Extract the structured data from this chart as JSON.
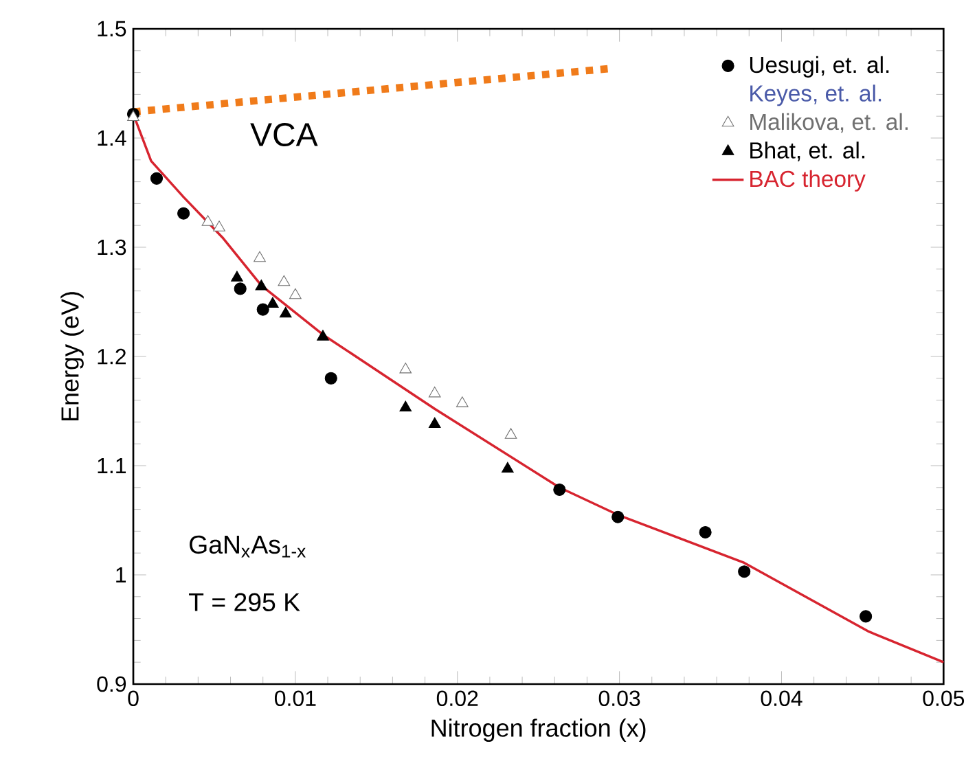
{
  "chart_data": {
    "type": "scatter",
    "xlabel": "Nitrogen fraction  (x)",
    "ylabel": "Energy (eV)",
    "xlim": [
      0,
      0.05
    ],
    "ylim": [
      0.9,
      1.5
    ],
    "xticks": [
      0,
      0.01,
      0.02,
      0.03,
      0.04,
      0.05
    ],
    "yticks": [
      0.9,
      1,
      1.1,
      1.2,
      1.3,
      1.4,
      1.5
    ],
    "grid": false,
    "legend": "top right",
    "annotations": [
      {
        "text": "VCA",
        "x": 0.0093,
        "y": 1.4365
      },
      "GaN$_{x}$As$_{1-x}$",
      "T = 295 K"
    ],
    "series": [
      {
        "name": "Uesugi, et. al.",
        "color": "#000000",
        "marker": "circle",
        "x": [
          0,
          0.00144,
          0.0031,
          0.0066,
          0.008,
          0.0122,
          0.0263,
          0.0299,
          0.0353,
          0.0377,
          0.0452
        ],
        "values": [
          1.422,
          1.363,
          1.331,
          1.262,
          1.243,
          1.18,
          1.078,
          1.053,
          1.039,
          1.003,
          0.962
        ]
      },
      {
        "name": "Keyes, et. al.",
        "color": "#4a5aa8",
        "marker": "none"
      },
      {
        "name": "Malikova, et. al.",
        "color": "#707070",
        "marker": "triangle",
        "x": [
          0,
          0.0046,
          0.0053,
          0.0078,
          0.0093,
          0.01,
          0.0168,
          0.0186,
          0.0203,
          0.0233
        ],
        "values": [
          1.419,
          1.323,
          1.318,
          1.29,
          1.268,
          1.256,
          1.188,
          1.166,
          1.157,
          1.128
        ]
      },
      {
        "name": "Bhat, et. al.",
        "color": "#000000",
        "marker": "triangle",
        "x": [
          0.0064,
          0.0079,
          0.0086,
          0.0094,
          0.0117,
          0.0168,
          0.0186,
          0.0231
        ],
        "values": [
          1.272,
          1.264,
          1.248,
          1.239,
          1.218,
          1.153,
          1.138,
          1.097
        ]
      },
      {
        "name": "BAC theory",
        "type": "line",
        "color": "#d7242f",
        "line_style": "solid",
        "marker": "none",
        "x": [
          0,
          0.0011,
          0.0031,
          0.0055,
          0.0079,
          0.0117,
          0.0186,
          0.0263,
          0.0299,
          0.0377,
          0.0454,
          0.05
        ],
        "values": [
          1.422,
          1.379,
          1.346,
          1.309,
          1.265,
          1.22,
          1.152,
          1.08,
          1.055,
          1.011,
          0.948,
          0.92
        ]
      },
      {
        "type": "line",
        "color": "#f07b1a",
        "line_style": "dotted",
        "marker": "none",
        "x": [
          0,
          0.0297
        ],
        "values": [
          1.424,
          1.464
        ]
      }
    ]
  }
}
